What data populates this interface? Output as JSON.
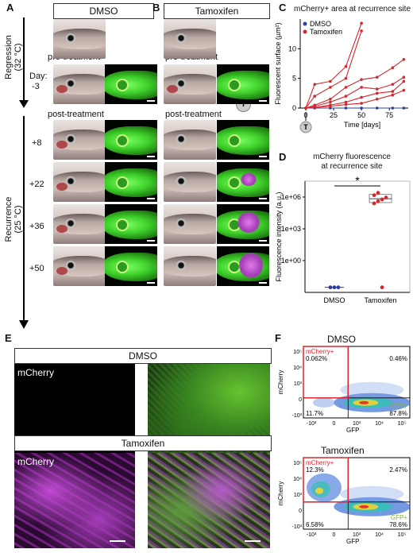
{
  "panels": {
    "A": {
      "letter": "A",
      "group_label": "DMSO"
    },
    "B": {
      "letter": "B",
      "group_label": "Tamoxifen"
    },
    "C": {
      "letter": "C"
    },
    "D": {
      "letter": "D"
    },
    "E": {
      "letter": "E"
    },
    "F": {
      "letter": "F"
    }
  },
  "timeline": {
    "regression_label": "Regression",
    "regression_temp": "(32 °C)",
    "recurrence_label": "Recurrence",
    "recurrence_temp": "(25 °C)",
    "day_label": "Day:",
    "days": [
      "-3",
      "+8",
      "+22",
      "+36",
      "+50"
    ],
    "pre_treatment": "pre-treatment",
    "post_treatment": "post-treatment",
    "treatment_marker": "T"
  },
  "chart_data": [
    {
      "type": "line",
      "title": "mCherry+ area at recurrence site",
      "xlabel": "Time [days]",
      "ylabel": "Fluorescent surface (µm²)",
      "xlim": [
        -5,
        92
      ],
      "ylim": [
        0,
        15
      ],
      "xticks": [
        "0",
        "25",
        "50",
        "75"
      ],
      "yticks": [
        "0",
        "5",
        "10"
      ],
      "legend": [
        "DMSO",
        "Tamoxifen"
      ],
      "legend_position": "top-left",
      "colors": {
        "DMSO": "#2b3fa0",
        "Tamoxifen": "#d9262e"
      },
      "series": [
        {
          "name": "DMSO",
          "group": "DMSO",
          "x": [
            0,
            8,
            22,
            36,
            50,
            64,
            78,
            88
          ],
          "y": [
            0,
            0,
            0,
            0,
            0,
            0,
            0,
            0
          ]
        },
        {
          "name": "Tamoxifen",
          "group": "Tamoxifen",
          "x": [
            0,
            8,
            22,
            36,
            50
          ],
          "y": [
            0,
            4.0,
            4.5,
            7.0,
            14.3
          ]
        },
        {
          "group": "Tamoxifen",
          "x": [
            0,
            8,
            22,
            36,
            50
          ],
          "y": [
            0,
            2.0,
            3.5,
            5.0,
            13.0
          ]
        },
        {
          "group": "Tamoxifen",
          "x": [
            0,
            8,
            22,
            36,
            50,
            64,
            78,
            88
          ],
          "y": [
            0,
            0.5,
            1.5,
            3.5,
            4.8,
            5.2,
            6.8,
            8.2
          ]
        },
        {
          "group": "Tamoxifen",
          "x": [
            0,
            8,
            22,
            36,
            50,
            64,
            78,
            88
          ],
          "y": [
            0,
            0.3,
            1.0,
            2.0,
            3.5,
            3.2,
            4.0,
            5.2
          ]
        },
        {
          "group": "Tamoxifen",
          "x": [
            0,
            8,
            22,
            36,
            50,
            64,
            78,
            88
          ],
          "y": [
            0,
            0.1,
            0.5,
            1.0,
            1.8,
            2.5,
            2.8,
            4.5
          ]
        },
        {
          "group": "Tamoxifen",
          "x": [
            0,
            8,
            22,
            36,
            50,
            64,
            78,
            88
          ],
          "y": [
            0,
            0.1,
            0.3,
            0.6,
            0.8,
            1.5,
            2.2,
            3.0
          ]
        }
      ]
    },
    {
      "type": "box",
      "title": "mCherry fluorescence\nat recurrence site",
      "ylabel": "Fluorescence intensity (a.u.)",
      "yscale": "log",
      "yticks": [
        "1e+00",
        "1e+03",
        "1e+06"
      ],
      "categories": [
        "DMSO",
        "Tamoxifen"
      ],
      "significance": "*",
      "points": {
        "DMSO": [
          0.003,
          0.003,
          0.003
        ],
        "Tamoxifen": [
          250000,
          400000,
          600000,
          900000,
          1500000,
          2500000,
          0.003
        ]
      },
      "box": {
        "Tamoxifen": {
          "q1": 300000,
          "median": 700000,
          "q3": 1800000
        }
      }
    }
  ],
  "panelE": {
    "dmso_label": "DMSO",
    "tamoxifen_label": "Tamoxifen",
    "channel_label": "mCherry"
  },
  "panelF": {
    "dmso": {
      "title": "DMSO",
      "xlabel": "GFP",
      "ylabel": "mCherry",
      "gate_mcherry": "mCherry+",
      "gate_gfp": "GFP+",
      "q_ul": "0.062%",
      "q_ur": "0.46%",
      "q_ll": "11.7%",
      "q_lr": "87.8%"
    },
    "tamoxifen": {
      "title": "Tamoxifen",
      "xlabel": "GFP",
      "ylabel": "mCherry",
      "gate_mcherry": "mCherry+",
      "gate_gfp": "GFP+",
      "q_ul": "12.3%",
      "q_ur": "2.47%",
      "q_ll": "6.58%",
      "q_lr": "78.6%"
    },
    "yticks": [
      "10⁵",
      "10⁴",
      "10³",
      "0",
      "-10³"
    ],
    "xticks": [
      "-10³",
      "0",
      "10³",
      "10⁴",
      "10⁵"
    ]
  },
  "colors": {
    "gate": "#d9262e",
    "gfp_label": "#7fb52a"
  }
}
